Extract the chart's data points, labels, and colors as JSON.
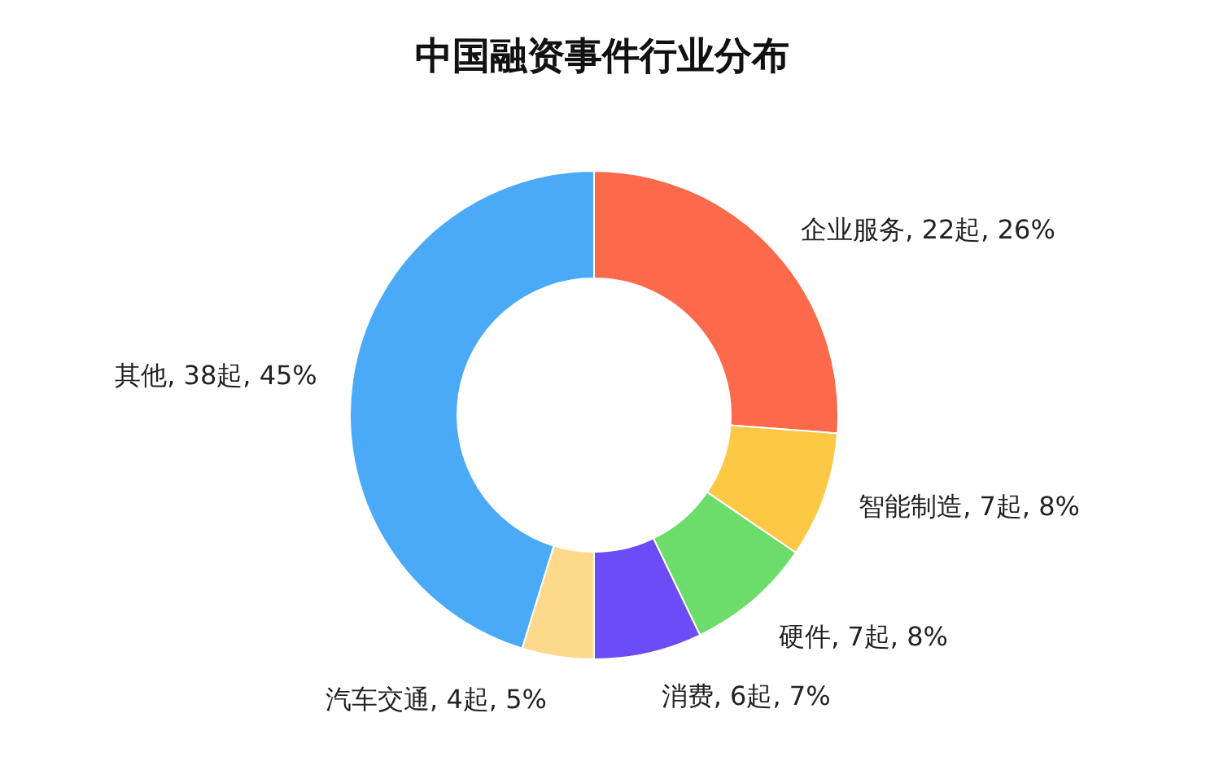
{
  "chart_data": {
    "type": "donut",
    "title": "中国融资事件行业分布",
    "categories": [
      "企业服务, 22起, 26%",
      "智能制造, 7起, 8%",
      "硬件, 7起, 8%",
      "消费, 6起, 7%",
      "汽车交通, 4起, 5%",
      "其他, 38起, 45%"
    ],
    "values": [
      22,
      7,
      7,
      6,
      4,
      38
    ],
    "colors": [
      "#fc6a4b",
      "#fdc944",
      "#6cdc6b",
      "#6b4cf6",
      "#fcd98b",
      "#4aaaf8"
    ]
  }
}
